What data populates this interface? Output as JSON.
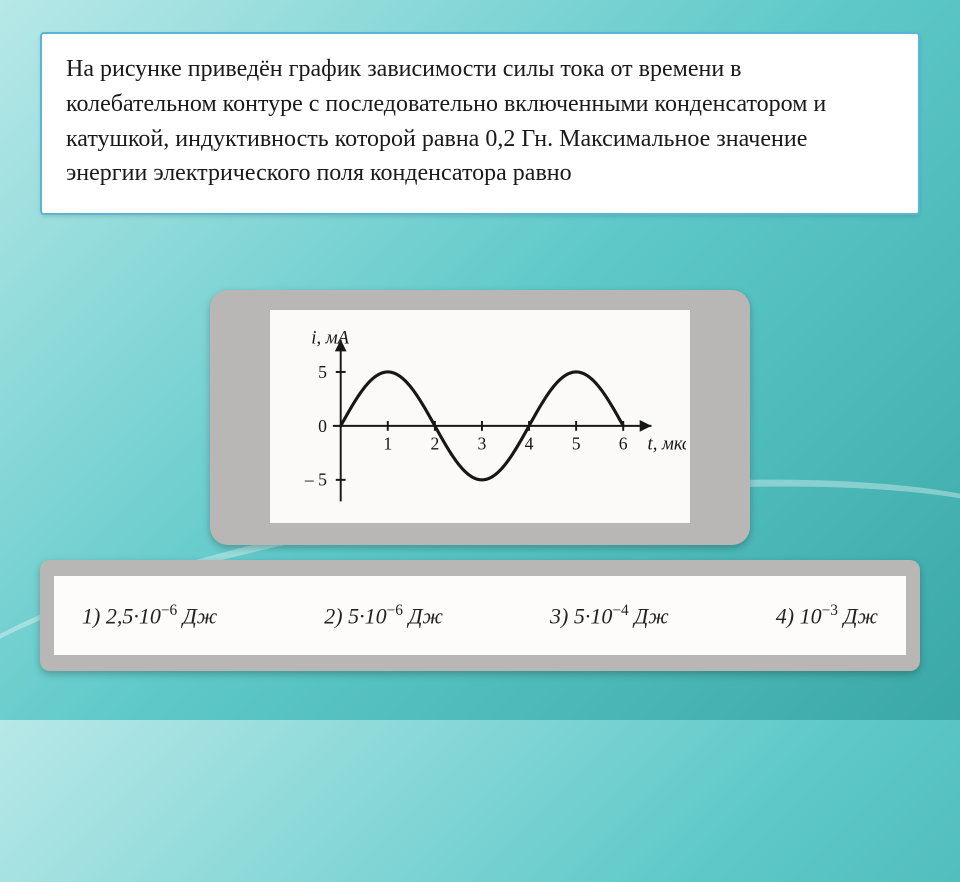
{
  "problem": {
    "text": "На рисунке приведён график зависимости силы тока от времени в колебательном контуре с последовательно включенными конденсатором и катушкой, индуктивность которой равна 0,2 Гн. Максимальное значение энергии электрического поля конденсатора равно",
    "fontsize": 24,
    "text_color": "#1a1a1a",
    "box_border_color": "#5bb5d6",
    "box_bg": "#ffffff"
  },
  "chart": {
    "type": "line",
    "y_label": "i, мА",
    "x_label": "t, мкс",
    "x_ticks": [
      1,
      2,
      3,
      4,
      5,
      6
    ],
    "y_ticks": [
      -5,
      0,
      5
    ],
    "xlim": [
      0,
      6.6
    ],
    "ylim": [
      -7,
      7
    ],
    "amplitude_mA": 5,
    "period_mks": 4,
    "line_color": "#171717",
    "line_width": 3.2,
    "axis_color": "#171717",
    "tick_fontsize": 18,
    "label_fontsize": 19,
    "bg": "#fbfaf8"
  },
  "answers": {
    "fontsize": 22,
    "text_color": "#222222",
    "bg": "#fdfcfa",
    "frame_bg": "#b9b7b5",
    "options": [
      {
        "n": "1)",
        "coeff": "2,5",
        "exp": "−6",
        "unit": "Дж"
      },
      {
        "n": "2)",
        "coeff": "5",
        "exp": "−6",
        "unit": "Дж"
      },
      {
        "n": "3)",
        "coeff": "5",
        "exp": "−4",
        "unit": "Дж"
      },
      {
        "n": "4)",
        "coeff": "",
        "exp": "−3",
        "unit": "Дж"
      }
    ]
  },
  "page": {
    "bg_gradient_from": "#b8e8e8",
    "bg_gradient_to": "#3ba8a8"
  }
}
